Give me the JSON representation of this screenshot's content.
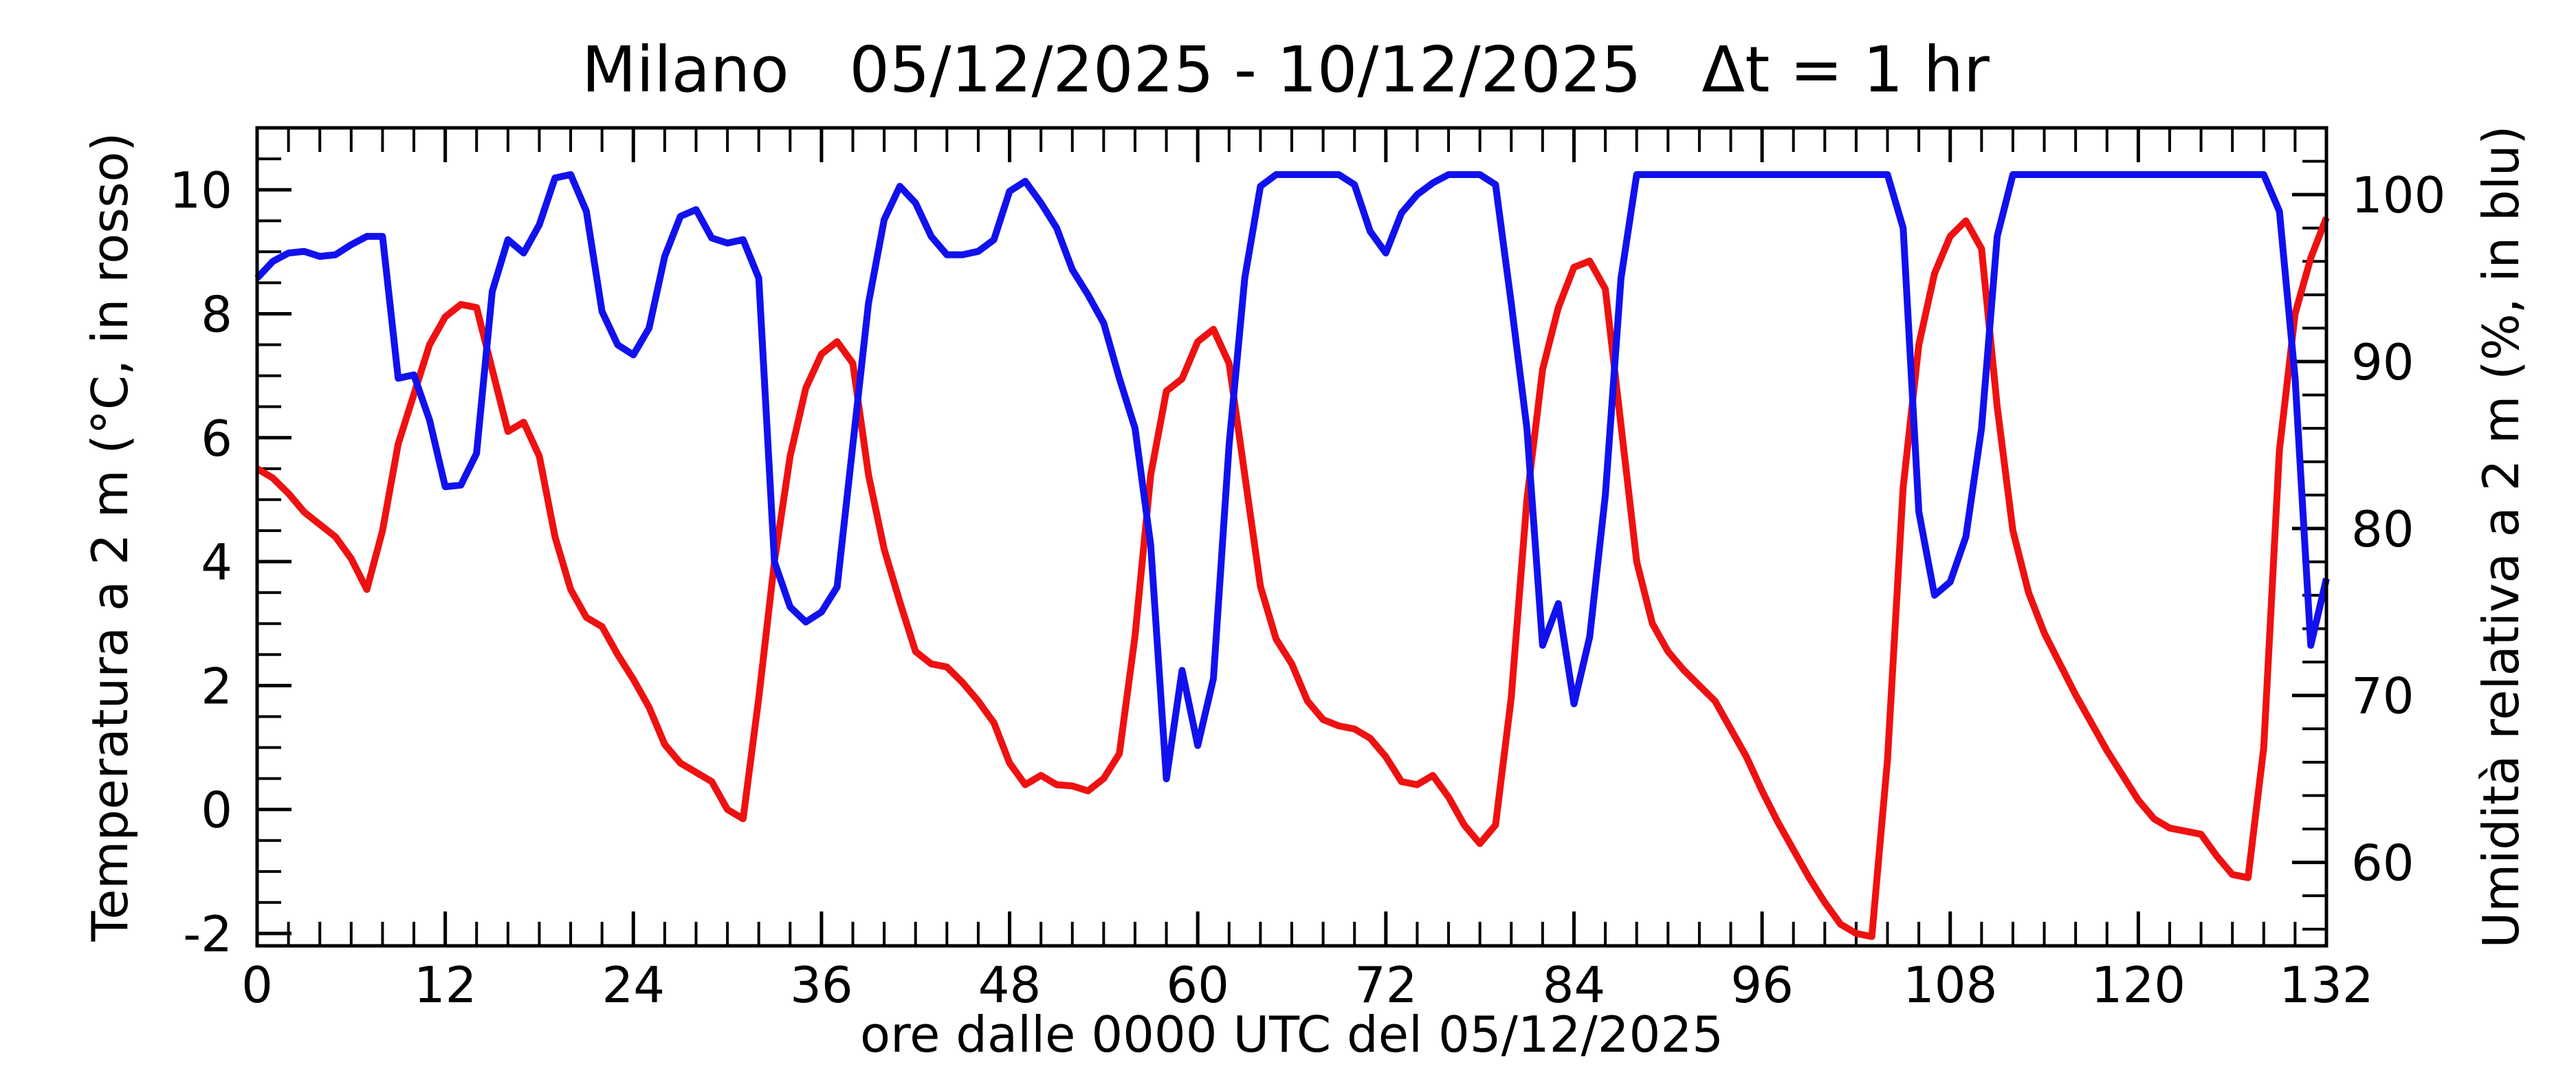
{
  "chart_data": {
    "type": "line",
    "title": "Milano   05/12/2025 - 10/12/2025   Δt = 1 hr",
    "xlabel": "ore dalle 0000 UTC del 05/12/2025",
    "ylabel_left": "Temperatura a 2 m (°C, in rosso)",
    "ylabel_right": "Umidità relativa a 2 m (%, in blu)",
    "xlim": [
      0,
      132
    ],
    "ylim_left": [
      -2.2,
      11
    ],
    "ylim_right": [
      55,
      104
    ],
    "x_ticks": [
      0,
      12,
      24,
      36,
      48,
      60,
      72,
      84,
      96,
      108,
      120,
      132
    ],
    "x_tick_labels": [
      "0",
      "12",
      "24",
      "36",
      "48",
      "60",
      "72",
      "84",
      "96",
      "108",
      "120",
      "132"
    ],
    "y_left_ticks": [
      -2,
      0,
      2,
      4,
      6,
      8,
      10
    ],
    "y_left_tick_labels": [
      "-2",
      "0",
      "2",
      "4",
      "6",
      "8",
      "10"
    ],
    "y_right_ticks": [
      60,
      70,
      80,
      90,
      100
    ],
    "y_right_tick_labels": [
      "60",
      "70",
      "80",
      "90",
      "100"
    ],
    "grid": false,
    "legend": "none",
    "series": [
      {
        "axis": "left",
        "color": "#ee1111",
        "points": [
          [
            0,
            5.5
          ],
          [
            1,
            5.35
          ],
          [
            2,
            5.1
          ],
          [
            3,
            4.8
          ],
          [
            4,
            4.6
          ],
          [
            5,
            4.4
          ],
          [
            6,
            4.05
          ],
          [
            7,
            3.55
          ],
          [
            8,
            4.5
          ],
          [
            9,
            5.9
          ],
          [
            10,
            6.7
          ],
          [
            11,
            7.5
          ],
          [
            12,
            7.95
          ],
          [
            13,
            8.15
          ],
          [
            14,
            8.1
          ],
          [
            15,
            7.1
          ],
          [
            16,
            6.1
          ],
          [
            17,
            6.25
          ],
          [
            18,
            5.7
          ],
          [
            19,
            4.4
          ],
          [
            20,
            3.55
          ],
          [
            21,
            3.1
          ],
          [
            22,
            2.95
          ],
          [
            23,
            2.5
          ],
          [
            24,
            2.1
          ],
          [
            25,
            1.65
          ],
          [
            26,
            1.05
          ],
          [
            27,
            0.75
          ],
          [
            28,
            0.6
          ],
          [
            29,
            0.45
          ],
          [
            30,
            0.0
          ],
          [
            31,
            -0.15
          ],
          [
            32,
            1.8
          ],
          [
            33,
            4.0
          ],
          [
            34,
            5.7
          ],
          [
            35,
            6.8
          ],
          [
            36,
            7.35
          ],
          [
            37,
            7.55
          ],
          [
            38,
            7.2
          ],
          [
            39,
            5.4
          ],
          [
            40,
            4.2
          ],
          [
            41,
            3.35
          ],
          [
            42,
            2.55
          ],
          [
            43,
            2.35
          ],
          [
            44,
            2.3
          ],
          [
            45,
            2.05
          ],
          [
            46,
            1.75
          ],
          [
            47,
            1.4
          ],
          [
            48,
            0.75
          ],
          [
            49,
            0.4
          ],
          [
            50,
            0.55
          ],
          [
            51,
            0.4
          ],
          [
            52,
            0.38
          ],
          [
            53,
            0.3
          ],
          [
            54,
            0.5
          ],
          [
            55,
            0.9
          ],
          [
            56,
            2.8
          ],
          [
            57,
            5.4
          ],
          [
            58,
            6.75
          ],
          [
            59,
            6.95
          ],
          [
            60,
            7.55
          ],
          [
            61,
            7.75
          ],
          [
            62,
            7.2
          ],
          [
            63,
            5.4
          ],
          [
            64,
            3.6
          ],
          [
            65,
            2.75
          ],
          [
            66,
            2.35
          ],
          [
            67,
            1.75
          ],
          [
            68,
            1.45
          ],
          [
            69,
            1.35
          ],
          [
            70,
            1.3
          ],
          [
            71,
            1.15
          ],
          [
            72,
            0.85
          ],
          [
            73,
            0.45
          ],
          [
            74,
            0.4
          ],
          [
            75,
            0.55
          ],
          [
            76,
            0.2
          ],
          [
            77,
            -0.25
          ],
          [
            78,
            -0.55
          ],
          [
            79,
            -0.25
          ],
          [
            80,
            1.8
          ],
          [
            81,
            5.0
          ],
          [
            82,
            7.1
          ],
          [
            83,
            8.1
          ],
          [
            84,
            8.75
          ],
          [
            85,
            8.85
          ],
          [
            86,
            8.4
          ],
          [
            87,
            6.2
          ],
          [
            88,
            4.0
          ],
          [
            89,
            3.0
          ],
          [
            90,
            2.55
          ],
          [
            91,
            2.25
          ],
          [
            92,
            2.0
          ],
          [
            93,
            1.75
          ],
          [
            94,
            1.3
          ],
          [
            95,
            0.85
          ],
          [
            96,
            0.3
          ],
          [
            97,
            -0.2
          ],
          [
            98,
            -0.65
          ],
          [
            99,
            -1.1
          ],
          [
            100,
            -1.5
          ],
          [
            101,
            -1.85
          ],
          [
            102,
            -2.0
          ],
          [
            103,
            -2.05
          ],
          [
            104,
            0.8
          ],
          [
            105,
            5.2
          ],
          [
            106,
            7.5
          ],
          [
            107,
            8.65
          ],
          [
            108,
            9.25
          ],
          [
            109,
            9.5
          ],
          [
            110,
            9.05
          ],
          [
            111,
            6.5
          ],
          [
            112,
            4.5
          ],
          [
            113,
            3.5
          ],
          [
            114,
            2.85
          ],
          [
            115,
            2.35
          ],
          [
            116,
            1.85
          ],
          [
            117,
            1.4
          ],
          [
            118,
            0.95
          ],
          [
            119,
            0.55
          ],
          [
            120,
            0.15
          ],
          [
            121,
            -0.15
          ],
          [
            122,
            -0.3
          ],
          [
            123,
            -0.35
          ],
          [
            124,
            -0.4
          ],
          [
            125,
            -0.75
          ],
          [
            126,
            -1.05
          ],
          [
            127,
            -1.1
          ],
          [
            128,
            1.0
          ],
          [
            129,
            5.8
          ],
          [
            130,
            8.0
          ],
          [
            131,
            8.9
          ],
          [
            132,
            9.55
          ]
        ]
      },
      {
        "axis": "right",
        "color": "#1111ee",
        "points": [
          [
            0,
            95.0
          ],
          [
            1,
            96.0
          ],
          [
            2,
            96.5
          ],
          [
            3,
            96.6
          ],
          [
            4,
            96.3
          ],
          [
            5,
            96.4
          ],
          [
            6,
            97.0
          ],
          [
            7,
            97.5
          ],
          [
            8,
            97.5
          ],
          [
            9,
            89.0
          ],
          [
            10,
            89.2
          ],
          [
            11,
            86.5
          ],
          [
            12,
            82.5
          ],
          [
            13,
            82.6
          ],
          [
            14,
            84.5
          ],
          [
            15,
            94.2
          ],
          [
            16,
            97.3
          ],
          [
            17,
            96.5
          ],
          [
            18,
            98.2
          ],
          [
            19,
            101.0
          ],
          [
            20,
            101.2
          ],
          [
            21,
            99.0
          ],
          [
            22,
            93.0
          ],
          [
            23,
            91.0
          ],
          [
            24,
            90.4
          ],
          [
            25,
            92.0
          ],
          [
            26,
            96.3
          ],
          [
            27,
            98.7
          ],
          [
            28,
            99.1
          ],
          [
            29,
            97.4
          ],
          [
            30,
            97.1
          ],
          [
            31,
            97.3
          ],
          [
            32,
            95.0
          ],
          [
            33,
            78.0
          ],
          [
            34,
            75.3
          ],
          [
            35,
            74.4
          ],
          [
            36,
            75.0
          ],
          [
            37,
            76.5
          ],
          [
            38,
            85.0
          ],
          [
            39,
            93.5
          ],
          [
            40,
            98.5
          ],
          [
            41,
            100.5
          ],
          [
            42,
            99.5
          ],
          [
            43,
            97.5
          ],
          [
            44,
            96.4
          ],
          [
            45,
            96.4
          ],
          [
            46,
            96.6
          ],
          [
            47,
            97.3
          ],
          [
            48,
            100.2
          ],
          [
            49,
            100.8
          ],
          [
            50,
            99.5
          ],
          [
            51,
            98.0
          ],
          [
            52,
            95.5
          ],
          [
            53,
            94.0
          ],
          [
            54,
            92.3
          ],
          [
            55,
            89.0
          ],
          [
            56,
            86.0
          ],
          [
            57,
            79.0
          ],
          [
            58,
            65.0
          ],
          [
            59,
            71.5
          ],
          [
            60,
            67.0
          ],
          [
            61,
            71.0
          ],
          [
            62,
            85.0
          ],
          [
            63,
            95.0
          ],
          [
            64,
            100.5
          ],
          [
            65,
            101.2
          ],
          [
            66,
            101.2
          ],
          [
            67,
            101.2
          ],
          [
            68,
            101.2
          ],
          [
            69,
            101.2
          ],
          [
            70,
            100.6
          ],
          [
            71,
            97.8
          ],
          [
            72,
            96.5
          ],
          [
            73,
            98.9
          ],
          [
            74,
            100.0
          ],
          [
            75,
            100.7
          ],
          [
            76,
            101.2
          ],
          [
            77,
            101.2
          ],
          [
            78,
            101.2
          ],
          [
            79,
            100.6
          ],
          [
            80,
            93.5
          ],
          [
            81,
            86.0
          ],
          [
            82,
            73.0
          ],
          [
            83,
            75.5
          ],
          [
            84,
            69.5
          ],
          [
            85,
            73.5
          ],
          [
            86,
            82.0
          ],
          [
            87,
            95.0
          ],
          [
            88,
            101.2
          ],
          [
            89,
            101.2
          ],
          [
            90,
            101.2
          ],
          [
            91,
            101.2
          ],
          [
            92,
            101.2
          ],
          [
            93,
            101.2
          ],
          [
            94,
            101.2
          ],
          [
            95,
            101.2
          ],
          [
            96,
            101.2
          ],
          [
            97,
            101.2
          ],
          [
            98,
            101.2
          ],
          [
            99,
            101.2
          ],
          [
            100,
            101.2
          ],
          [
            101,
            101.2
          ],
          [
            102,
            101.2
          ],
          [
            103,
            101.2
          ],
          [
            104,
            101.2
          ],
          [
            105,
            98.0
          ],
          [
            106,
            81.0
          ],
          [
            107,
            76.0
          ],
          [
            108,
            76.8
          ],
          [
            109,
            79.5
          ],
          [
            110,
            86.0
          ],
          [
            111,
            97.5
          ],
          [
            112,
            101.2
          ],
          [
            113,
            101.2
          ],
          [
            114,
            101.2
          ],
          [
            115,
            101.2
          ],
          [
            116,
            101.2
          ],
          [
            117,
            101.2
          ],
          [
            118,
            101.2
          ],
          [
            119,
            101.2
          ],
          [
            120,
            101.2
          ],
          [
            121,
            101.2
          ],
          [
            122,
            101.2
          ],
          [
            123,
            101.2
          ],
          [
            124,
            101.2
          ],
          [
            125,
            101.2
          ],
          [
            126,
            101.2
          ],
          [
            127,
            101.2
          ],
          [
            128,
            101.2
          ],
          [
            129,
            99.0
          ],
          [
            130,
            89.0
          ],
          [
            131,
            73.0
          ],
          [
            132,
            77.0
          ]
        ]
      }
    ]
  }
}
